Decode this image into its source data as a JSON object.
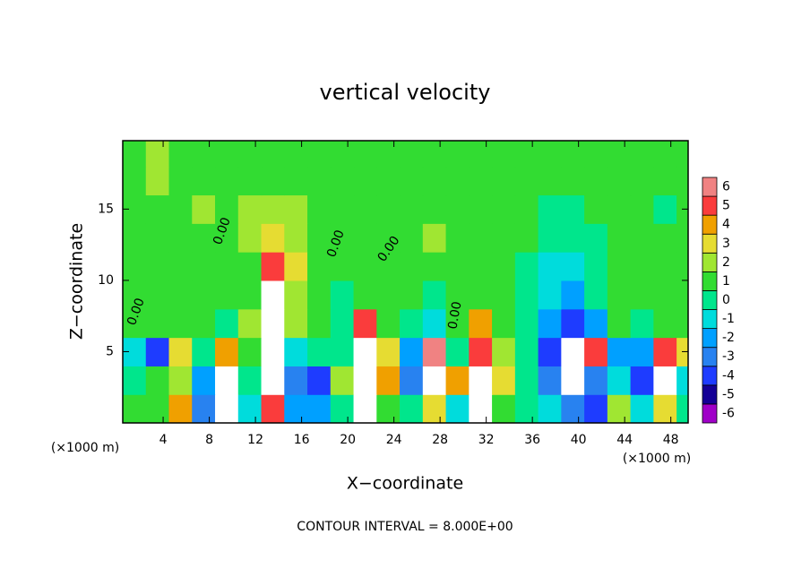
{
  "chart_data": {
    "type": "heatmap",
    "title": "vertical velocity",
    "xlabel": "X−coordinate",
    "ylabel": "Z−coordinate",
    "x_unit": "(×1000 m)",
    "x_unit_right": "(×1000 m)",
    "footer": "CONTOUR INTERVAL = 8.000E+00",
    "contour_labels": [
      "0.00",
      "0.00",
      "0.00",
      "0.00",
      "0.00"
    ],
    "xlim": [
      0.5,
      49.5
    ],
    "ylim": [
      0,
      19.8
    ],
    "xticks": [
      4,
      8,
      12,
      16,
      20,
      24,
      28,
      32,
      36,
      40,
      44,
      48
    ],
    "yticks": [
      5,
      10,
      15
    ],
    "x": [
      1.5,
      3.5,
      5.5,
      7.5,
      9.5,
      11.5,
      13.5,
      15.5,
      17.5,
      19.5,
      21.5,
      23.5,
      25.5,
      27.5,
      29.5,
      31.5,
      33.5,
      35.5,
      37.5,
      39.5,
      41.5,
      43.5,
      45.5,
      47.5,
      49.5
    ],
    "y": [
      1,
      3,
      5,
      7,
      9,
      11,
      13,
      15,
      17,
      19
    ],
    "z": [
      [
        0,
        0,
        3,
        -4,
        7,
        -2,
        4,
        -3,
        -3,
        -1,
        6,
        0,
        -1,
        2,
        -2,
        7,
        0,
        -1,
        -2,
        -4,
        -5,
        1,
        -2,
        2,
        -1
      ],
      [
        -1,
        0.5,
        1,
        -3,
        7,
        -1,
        7,
        -4,
        -5,
        1,
        7,
        3,
        -4,
        7,
        3,
        7,
        2,
        -1,
        -4,
        7,
        -4,
        -2,
        -5,
        7,
        -2
      ],
      [
        -2,
        -5,
        2,
        -1,
        3,
        0,
        7,
        -2,
        -1,
        -0.5,
        7,
        2,
        -3,
        5,
        -1,
        4,
        1,
        -0.5,
        -5,
        7,
        4,
        -3,
        -3,
        4,
        2
      ],
      [
        0,
        0,
        0,
        0,
        -1,
        1,
        7,
        1,
        0.5,
        -1,
        4,
        0,
        -1,
        -2,
        0,
        3,
        0,
        -1,
        -3,
        -5,
        -3,
        0,
        -1,
        0,
        0
      ],
      [
        0,
        0.5,
        0,
        0,
        0,
        0,
        6,
        1,
        0.5,
        -0.5,
        0.5,
        0,
        0,
        -0.5,
        0,
        0.5,
        0,
        -1,
        -2,
        -3,
        -1,
        0.5,
        0.5,
        0.5,
        0
      ],
      [
        0.5,
        0,
        0,
        0.5,
        0,
        0.5,
        4,
        2,
        0.5,
        0,
        0,
        0,
        0,
        0.5,
        0,
        0.5,
        0,
        -0.5,
        -1.5,
        -2,
        -1,
        0,
        0,
        0.5,
        0
      ],
      [
        0.5,
        0.5,
        0.5,
        0.5,
        0.5,
        1,
        2.5,
        1.5,
        0.5,
        0,
        0.5,
        0,
        0,
        1,
        0.5,
        0.5,
        0,
        0,
        -1,
        -1,
        -0.5,
        0,
        0,
        0,
        0
      ],
      [
        0.5,
        0.5,
        0.5,
        1,
        0.5,
        1,
        1.5,
        1,
        0,
        0,
        0,
        0,
        0,
        0.5,
        0.5,
        0.5,
        0,
        0,
        -0.5,
        -0.5,
        0,
        0,
        0,
        -0.5,
        0
      ],
      [
        0.5,
        1,
        0.5,
        0.5,
        0.5,
        0.5,
        0.5,
        0.5,
        0,
        0,
        0,
        0.5,
        0.5,
        0.5,
        0.5,
        0.5,
        0.5,
        0,
        0,
        0,
        0,
        0,
        0,
        0,
        0
      ],
      [
        0.5,
        1,
        0.5,
        0.5,
        0.5,
        0,
        0,
        0,
        0,
        0,
        0,
        0.5,
        0.5,
        0.5,
        0.5,
        0.5,
        0,
        0,
        0,
        0,
        0,
        0,
        0,
        0,
        0
      ]
    ],
    "levels": [
      -6,
      -5,
      -4,
      -3,
      -2,
      -1,
      0,
      1,
      2,
      3,
      4,
      5,
      6
    ],
    "colors": [
      "#a000c8",
      "#140096",
      "#1e3cff",
      "#2882f0",
      "#00a0ff",
      "#00dcdc",
      "#00e68c",
      "#32dc32",
      "#a0e632",
      "#e6dc32",
      "#f0a000",
      "#fa3c3c",
      "#f08282",
      "#ffffff"
    ]
  }
}
